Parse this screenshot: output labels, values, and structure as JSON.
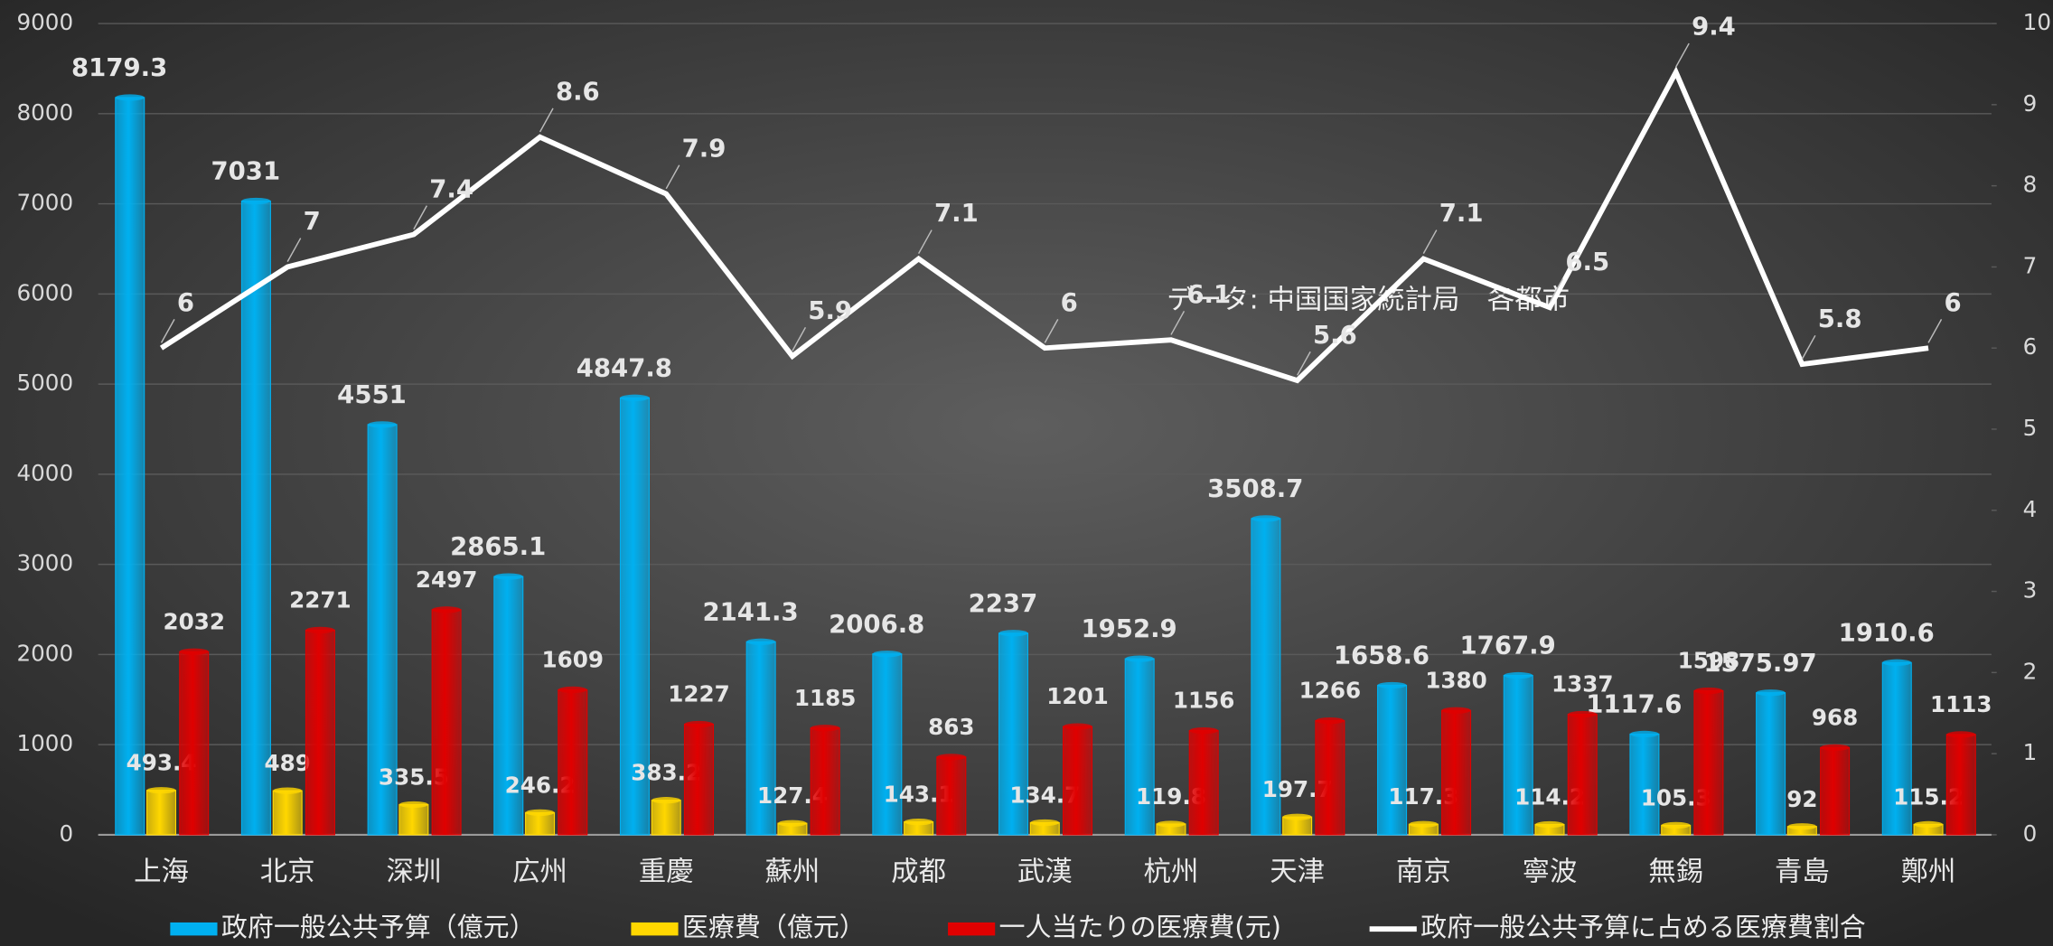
{
  "chart_data": {
    "type": "bar_line",
    "annotation": "データ: 中国国家統計局　各都市",
    "categories": [
      "上海",
      "北京",
      "深圳",
      "広州",
      "重慶",
      "蘇州",
      "成都",
      "武漢",
      "杭州",
      "天津",
      "南京",
      "寧波",
      "無錫",
      "青島",
      "鄭州"
    ],
    "series": [
      {
        "name": "政府一般公共予算（億元）",
        "type": "bar",
        "color": "#00b0f0",
        "values": [
          8179.3,
          7031,
          4551,
          2865.1,
          4847.8,
          2141.3,
          2006.8,
          2237,
          1952.9,
          3508.7,
          1658.6,
          1767.9,
          1117.6,
          1575.97,
          1910.6
        ]
      },
      {
        "name": "医療費（億元）",
        "type": "bar",
        "color": "#ffd700",
        "values": [
          493.4,
          489,
          335.5,
          246.2,
          383.2,
          127.4,
          143.1,
          134.7,
          119.8,
          197.7,
          117.3,
          114.2,
          105.3,
          92,
          115.2
        ]
      },
      {
        "name": "一人当たりの医療費(元)",
        "type": "bar",
        "color": "#e00000",
        "values": [
          2032,
          2271,
          2497,
          1609,
          1227,
          1185,
          863,
          1201,
          1156,
          1266,
          1380,
          1337,
          1598,
          968,
          1113
        ]
      },
      {
        "name": "政府一般公共予算に占める医療費割合",
        "type": "line",
        "axis": "y2",
        "color": "#ffffff",
        "values": [
          6,
          7,
          7.4,
          8.6,
          7.9,
          5.9,
          7.1,
          6,
          6.1,
          5.6,
          7.1,
          6.5,
          9.4,
          5.8,
          6
        ]
      }
    ],
    "ylim": [
      0,
      9000
    ],
    "yticks": [
      0,
      1000,
      2000,
      3000,
      4000,
      5000,
      6000,
      7000,
      8000,
      9000
    ],
    "y2lim": [
      0,
      10
    ],
    "y2ticks": [
      0,
      1,
      2,
      3,
      4,
      5,
      6,
      7,
      8,
      9,
      10
    ],
    "grid": true,
    "legend": "bottom"
  }
}
